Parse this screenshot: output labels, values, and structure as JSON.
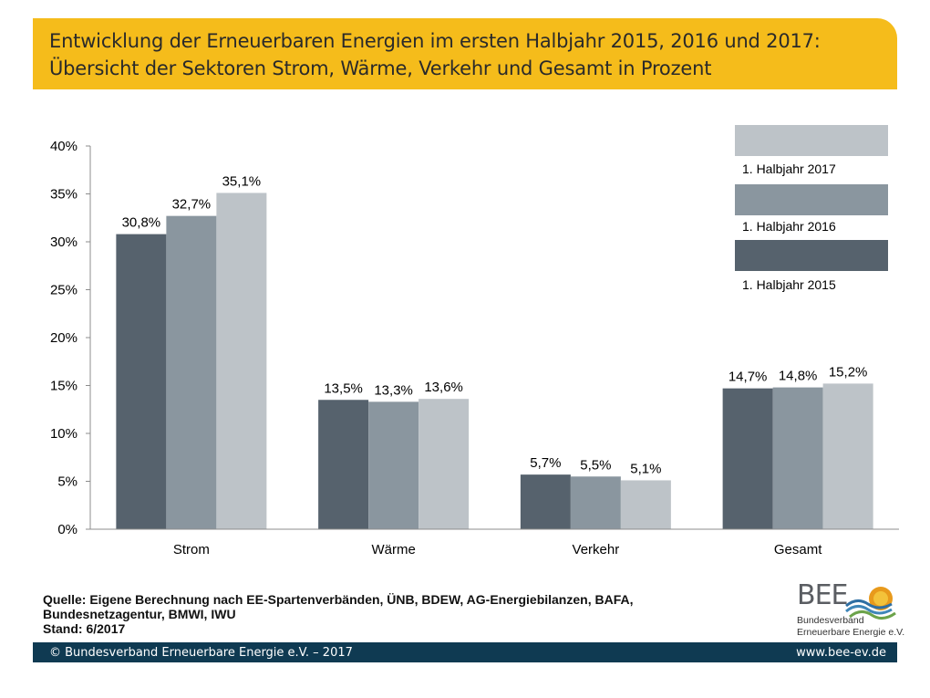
{
  "header": {
    "title_line1": "Entwicklung der Erneuerbaren Energien im ersten Halbjahr 2015, 2016 und 2017:",
    "title_line2": "Übersicht der Sektoren Strom, Wärme, Verkehr und Gesamt in Prozent"
  },
  "chart_data": {
    "type": "bar",
    "title": "Entwicklung der Erneuerbaren Energien im ersten Halbjahr 2015, 2016 und 2017: Übersicht der Sektoren Strom, Wärme, Verkehr und Gesamt in Prozent",
    "categories": [
      "Strom",
      "Wärme",
      "Verkehr",
      "Gesamt"
    ],
    "series": [
      {
        "name": "1. Halbjahr 2015",
        "values": [
          30.8,
          13.5,
          5.7,
          14.7
        ],
        "labels": [
          "30,8%",
          "13,5%",
          "5,7%",
          "14,7%"
        ],
        "color": "#56626d"
      },
      {
        "name": "1. Halbjahr 2016",
        "values": [
          32.7,
          13.3,
          5.5,
          14.8
        ],
        "labels": [
          "32,7%",
          "13,3%",
          "5,5%",
          "14,8%"
        ],
        "color": "#8a969f"
      },
      {
        "name": "1. Halbjahr 2017",
        "values": [
          35.1,
          13.6,
          5.1,
          15.2
        ],
        "labels": [
          "35,1%",
          "13,6%",
          "5,1%",
          "15,2%"
        ],
        "color": "#bdc3c8"
      }
    ],
    "ylim": [
      0,
      40
    ],
    "yticks": [
      0,
      5,
      10,
      15,
      20,
      25,
      30,
      35,
      40
    ],
    "ytick_labels": [
      "0%",
      "5%",
      "10%",
      "15%",
      "20%",
      "25%",
      "30%",
      "35%",
      "40%"
    ],
    "xlabel": "",
    "ylabel": "",
    "grid": false,
    "legend_position": "top-right",
    "legend_order": [
      "1. Halbjahr 2017",
      "1. Halbjahr 2016",
      "1. Halbjahr 2015"
    ]
  },
  "legend": {
    "item_2017": "1. Halbjahr 2017",
    "item_2016": "1. Halbjahr 2016",
    "item_2015": "1. Halbjahr 2015"
  },
  "source": {
    "line1": "Quelle: Eigene Berechnung nach EE-Spartenverbänden, ÜNB, BDEW, AG-Energiebilanzen, BAFA,",
    "line2": "Bundesnetzagentur, BMWI, IWU",
    "line3": "Stand: 6/2017"
  },
  "logo": {
    "mark": "BEE",
    "sub1": "Bundesverband",
    "sub2": "Erneuerbare Energie e.V."
  },
  "footer": {
    "copyright": "© Bundesverband Erneuerbare Energie e.V. – 2017",
    "url": "www.bee-ev.de"
  },
  "colors": {
    "title_bar": "#f5bc1b",
    "footer_bar": "#0f3a52",
    "logo_sun": "#e89a1c",
    "logo_wave": "#2f6fa3"
  }
}
